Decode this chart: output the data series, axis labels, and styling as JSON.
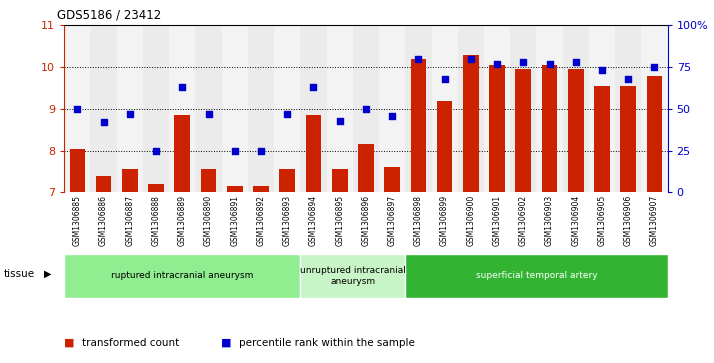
{
  "title": "GDS5186 / 23412",
  "samples": [
    "GSM1306885",
    "GSM1306886",
    "GSM1306887",
    "GSM1306888",
    "GSM1306889",
    "GSM1306890",
    "GSM1306891",
    "GSM1306892",
    "GSM1306893",
    "GSM1306894",
    "GSM1306895",
    "GSM1306896",
    "GSM1306897",
    "GSM1306898",
    "GSM1306899",
    "GSM1306900",
    "GSM1306901",
    "GSM1306902",
    "GSM1306903",
    "GSM1306904",
    "GSM1306905",
    "GSM1306906",
    "GSM1306907"
  ],
  "transformed_count": [
    8.05,
    7.4,
    7.55,
    7.2,
    8.85,
    7.55,
    7.15,
    7.15,
    7.55,
    8.85,
    7.55,
    8.15,
    7.6,
    10.2,
    9.2,
    10.3,
    10.05,
    9.95,
    10.05,
    9.95,
    9.55,
    9.55,
    9.8
  ],
  "percentile_rank": [
    50,
    42,
    47,
    25,
    63,
    47,
    25,
    25,
    47,
    63,
    43,
    50,
    46,
    80,
    68,
    80,
    77,
    78,
    77,
    78,
    73,
    68,
    75
  ],
  "groups": [
    {
      "label": "ruptured intracranial aneurysm",
      "start": 0,
      "end": 9,
      "color": "#90ee90"
    },
    {
      "label": "unruptured intracranial\naneurysm",
      "start": 9,
      "end": 13,
      "color": "#c8f5c8"
    },
    {
      "label": "superficial temporal artery",
      "start": 13,
      "end": 23,
      "color": "#32b432"
    }
  ],
  "ylim_left": [
    7,
    11
  ],
  "ylim_right": [
    0,
    100
  ],
  "yticks_left": [
    7,
    8,
    9,
    10,
    11
  ],
  "yticks_right": [
    0,
    25,
    50,
    75,
    100
  ],
  "ytick_labels_right": [
    "0",
    "25",
    "50",
    "75",
    "100%"
  ],
  "bar_color": "#cc2200",
  "dot_color": "#0000cc",
  "grid_color": "#000000",
  "plot_bg": "#ffffff"
}
